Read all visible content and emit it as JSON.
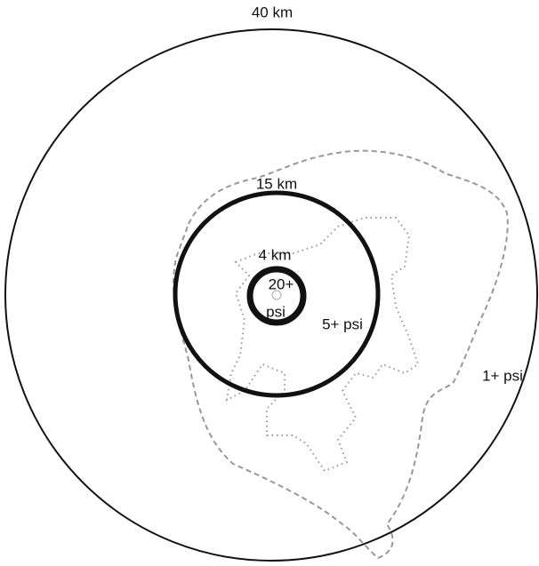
{
  "rings": [
    {
      "radius_label": "40 km",
      "pressure_label": [
        "1+ psi"
      ]
    },
    {
      "radius_label": "15 km",
      "pressure_label": [
        "5+ psi"
      ]
    },
    {
      "radius_label": "4 km",
      "pressure_label": [
        "20+",
        "psi"
      ]
    }
  ]
}
